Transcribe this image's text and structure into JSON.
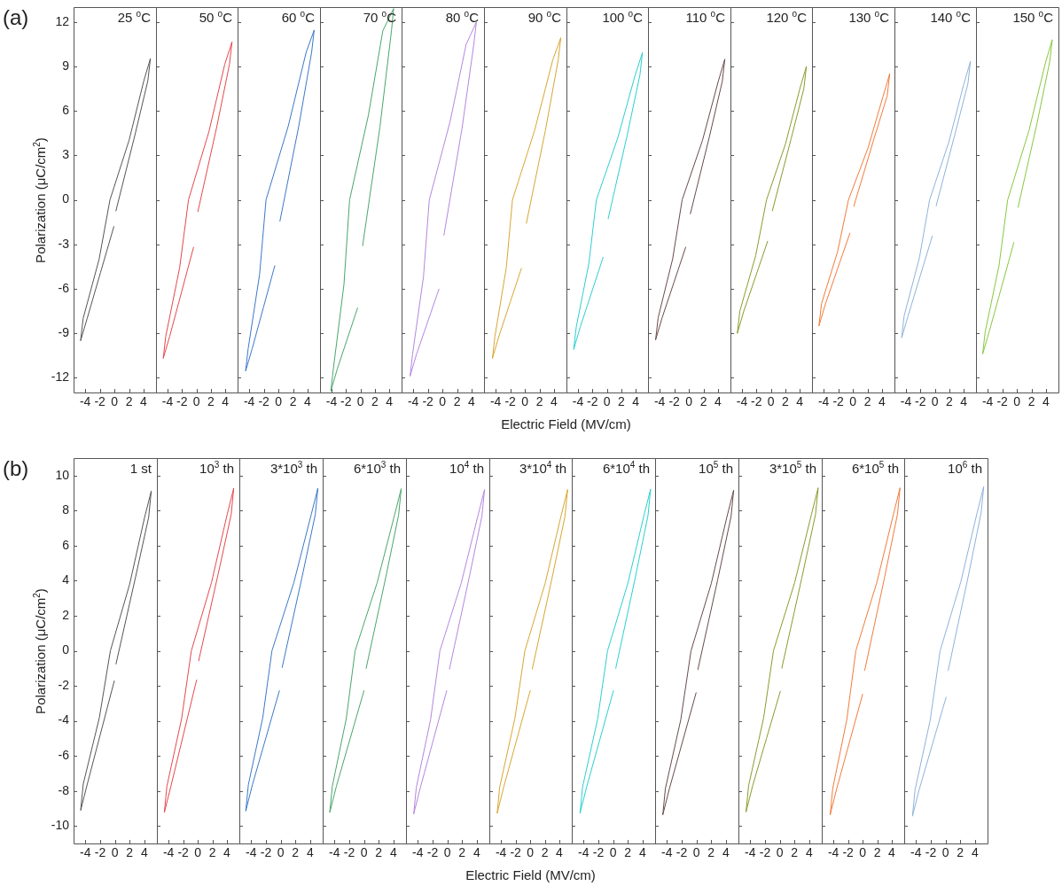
{
  "chart_data": [
    {
      "type": "line",
      "title": "25 $^{o}$C",
      "annotations": [
        "(a)"
      ],
      "ylabel": "Polarization (μC/cm$^{2}$)",
      "color": "#555555",
      "xlim": [
        -5.6,
        5.7
      ],
      "ylim": [
        -13,
        13
      ],
      "xticks": [
        -4,
        -2,
        0,
        2,
        4
      ],
      "yticks": [
        -12,
        -9,
        -6,
        -3,
        0,
        3,
        6,
        9,
        12
      ],
      "x": [
        0.2,
        2.82,
        4.58,
        4.93,
        4.03,
        2.01,
        -0.61,
        -2.1,
        -4.29,
        -4.64,
        -3.74,
        -1.91,
        -0.08
      ],
      "values": [
        -0.75,
        4.39,
        8.03,
        9.53,
        8.03,
        4.02,
        0,
        -4.01,
        -8.01,
        -9.51,
        -8.01,
        -4.91,
        -1.81
      ]
    },
    {
      "type": "line",
      "title": "50 $^{o}$C",
      "tick_labels": "x",
      "color": "#e5484d",
      "xlim": [
        -5.6,
        5.7
      ],
      "ylim": [
        -13,
        13
      ],
      "xticks": [
        -4,
        -2,
        0,
        2,
        4
      ],
      "yticks": [
        -12,
        -9,
        -6,
        -3,
        0,
        3,
        6,
        9,
        12
      ],
      "x": [
        0.2,
        2.82,
        4.58,
        4.93,
        3.93,
        1.72,
        -1.1,
        -2.33,
        -4.25,
        -4.6,
        -3.7,
        -2.05,
        -0.4
      ],
      "values": [
        -0.8,
        4.93,
        9.15,
        10.65,
        9.15,
        4.58,
        0,
        -4.6,
        -9.2,
        -10.7,
        -9.2,
        -6.2,
        -3.2
      ]
    },
    {
      "type": "line",
      "title": "60 $^{o}$C",
      "tick_labels": "x",
      "color": "#3b78c8",
      "xlim": [
        -5.6,
        5.7
      ],
      "ylim": [
        -13,
        13
      ],
      "xticks": [
        -4,
        -2,
        0,
        2,
        4
      ],
      "yticks": [
        -12,
        -9,
        -6,
        -3,
        0,
        3,
        6,
        9,
        12
      ],
      "x": [
        0.2,
        2.8,
        4.55,
        4.9,
        3.8,
        1.35,
        -1.7,
        -2.58,
        -4.15,
        -4.5,
        -3.6,
        -2.05,
        -0.5
      ],
      "values": [
        -1.45,
        5.0,
        9.95,
        11.45,
        9.95,
        4.98,
        0,
        -5.03,
        -10.05,
        -11.55,
        -10.05,
        -7.25,
        -4.45
      ]
    },
    {
      "type": "line",
      "title": "70 $^{o}$C",
      "tick_labels": "x",
      "color": "#4aa66b",
      "xlim": [
        -5.6,
        5.7
      ],
      "ylim": [
        -13,
        13
      ],
      "xticks": [
        -4,
        -2,
        0,
        2,
        4
      ],
      "yticks": [
        -12,
        -9,
        -6,
        -3,
        0,
        3,
        6,
        9,
        12
      ],
      "x": [
        0.3,
        2.7,
        4.3,
        4.6,
        3.1,
        1.1,
        -1.5,
        -2.28,
        -3.75,
        -4.1,
        -3.2,
        -1.8,
        -0.4
      ],
      "values": [
        -3.1,
        4.9,
        11.4,
        12.9,
        11.4,
        5.7,
        0,
        -5.7,
        -11.4,
        -12.9,
        -11.4,
        -9.35,
        -7.3
      ]
    },
    {
      "type": "line",
      "title": "80 $^{o}$C",
      "tick_labels": "x",
      "color": "#b586df",
      "xlim": [
        -5.6,
        5.7
      ],
      "ylim": [
        -13,
        13
      ],
      "xticks": [
        -4,
        -2,
        0,
        2,
        4
      ],
      "yticks": [
        -12,
        -9,
        -6,
        -3,
        0,
        3,
        6,
        9,
        12
      ],
      "x": [
        0.2,
        2.68,
        4.3,
        4.65,
        3.25,
        1.03,
        -1.8,
        -2.6,
        -4.09,
        -4.44,
        -3.54,
        -2.01,
        -0.48
      ],
      "values": [
        -2.39,
        4.8,
        10.48,
        11.98,
        10.48,
        5.24,
        0,
        -5.2,
        -10.4,
        -11.9,
        -10.4,
        -8.22,
        -6.03
      ]
    },
    {
      "type": "line",
      "title": "90 $^{o}$C",
      "tick_labels": "x",
      "xlabel": "Electric Field (MV/cm)",
      "color": "#d8a632",
      "xlim": [
        -5.6,
        5.7
      ],
      "ylim": [
        -13,
        13
      ],
      "xticks": [
        -4,
        -2,
        0,
        2,
        4
      ],
      "yticks": [
        -12,
        -9,
        -6,
        -3,
        0,
        3,
        6,
        9,
        12
      ],
      "x": [
        0.2,
        2.81,
        4.57,
        4.92,
        3.82,
        1.36,
        -1.7,
        -2.55,
        -4.1,
        -4.45,
        -3.55,
        -2.02,
        -0.48
      ],
      "values": [
        -1.59,
        4.67,
        9.43,
        10.93,
        9.43,
        4.72,
        0,
        -4.6,
        -9.2,
        -10.7,
        -9.2,
        -6.92,
        -4.63
      ]
    },
    {
      "type": "line",
      "title": "100 $^{o}$C",
      "tick_labels": "x",
      "color": "#2dcfd0",
      "xlim": [
        -5.6,
        5.7
      ],
      "ylim": [
        -13,
        13
      ],
      "xticks": [
        -4,
        -2,
        0,
        2,
        4
      ],
      "yticks": [
        -12,
        -9,
        -6,
        -3,
        0,
        3,
        6,
        9,
        12
      ],
      "x": [
        0.17,
        2.8,
        4.58,
        4.93,
        3.93,
        1.54,
        -1.45,
        -2.5,
        -4.25,
        -4.6,
        -3.7,
        -2.11,
        -0.52
      ],
      "values": [
        -1.29,
        4.32,
        8.43,
        9.93,
        8.43,
        4.22,
        0,
        -4.3,
        -8.6,
        -10.1,
        -8.6,
        -6.24,
        -3.88
      ]
    },
    {
      "type": "line",
      "title": "110 $^{o}$C",
      "tick_labels": "x",
      "color": "#6a4a4b",
      "xlim": [
        -5.6,
        5.7
      ],
      "ylim": [
        -13,
        13
      ],
      "xticks": [
        -4,
        -2,
        0,
        2,
        4
      ],
      "yticks": [
        -12,
        -9,
        -6,
        -3,
        0,
        3,
        6,
        9,
        12
      ],
      "x": [
        0.2,
        2.82,
        4.58,
        4.93,
        4.03,
        1.86,
        -0.92,
        -2.22,
        -4.21,
        -4.56,
        -3.66,
        -2.05,
        -0.44
      ],
      "values": [
        -0.95,
        4.27,
        7.99,
        9.49,
        7.99,
        4.0,
        0,
        -3.98,
        -7.95,
        -9.45,
        -7.95,
        -5.58,
        -3.2
      ]
    },
    {
      "type": "line",
      "title": "120 $^{o}$C",
      "tick_labels": "x",
      "color": "#8d9a2c",
      "xlim": [
        -5.6,
        5.7
      ],
      "ylim": [
        -13,
        13
      ],
      "xticks": [
        -4,
        -2,
        0,
        2,
        4
      ],
      "yticks": [
        -12,
        -9,
        -6,
        -3,
        0,
        3,
        6,
        9,
        12
      ],
      "x": [
        0.2,
        2.81,
        4.57,
        4.92,
        4.02,
        2.01,
        -0.6,
        -2.1,
        -4.3,
        -4.65,
        -3.75,
        -2.1,
        -0.45
      ],
      "values": [
        -0.75,
        4.13,
        7.5,
        9.0,
        7.5,
        3.75,
        0,
        -3.76,
        -7.51,
        -9.01,
        -7.51,
        -5.16,
        -2.8
      ]
    },
    {
      "type": "line",
      "title": "130 $^{o}$C",
      "tick_labels": "x",
      "color": "#f37b3c",
      "xlim": [
        -5.6,
        5.7
      ],
      "ylim": [
        -13,
        13
      ],
      "xticks": [
        -4,
        -2,
        0,
        2,
        4
      ],
      "yticks": [
        -12,
        -9,
        -6,
        -3,
        0,
        3,
        6,
        9,
        12
      ],
      "x": [
        0.12,
        2.84,
        4.7,
        5.05,
        4.15,
        2.08,
        -0.6,
        -2.1,
        -4.3,
        -4.65,
        -3.75,
        -2.08,
        -0.4
      ],
      "values": [
        -0.45,
        4.03,
        7.0,
        8.5,
        7.0,
        3.5,
        0,
        -3.51,
        -7.01,
        -8.51,
        -7.01,
        -4.63,
        -2.25
      ]
    },
    {
      "type": "line",
      "title": "140 $^{o}$C",
      "tick_labels": "x",
      "color": "#8eb3da",
      "xlim": [
        -5.6,
        5.7
      ],
      "ylim": [
        -13,
        13
      ],
      "xticks": [
        -4,
        -2,
        0,
        2,
        4
      ],
      "yticks": [
        -12,
        -9,
        -6,
        -3,
        0,
        3,
        6,
        9,
        12
      ],
      "x": [
        0.17,
        2.8,
        4.58,
        4.93,
        4.03,
        1.95,
        -0.73,
        -2.14,
        -4.25,
        -4.6,
        -3.7,
        -2.03,
        -0.36
      ],
      "values": [
        -0.42,
        4.46,
        7.84,
        9.34,
        7.84,
        3.92,
        0,
        -3.91,
        -7.81,
        -9.31,
        -7.81,
        -5.13,
        -2.45
      ]
    },
    {
      "type": "line",
      "title": "150 $^{o}$C",
      "tick_labels": "x",
      "color": "#88c840",
      "xlim": [
        -5.6,
        5.7
      ],
      "ylim": [
        -13,
        13
      ],
      "xticks": [
        -4,
        -2,
        0,
        2,
        4
      ],
      "yticks": [
        -12,
        -9,
        -6,
        -3,
        0,
        3,
        6,
        9,
        12
      ],
      "x": [
        0.16,
        2.76,
        4.5,
        4.85,
        3.95,
        1.65,
        -1.26,
        -2.45,
        -4.34,
        -4.69,
        -3.79,
        -2.1,
        -0.41
      ],
      "values": [
        -0.51,
        5.15,
        9.3,
        10.8,
        9.3,
        4.65,
        0,
        -4.45,
        -8.9,
        -10.4,
        -8.9,
        -5.89,
        -2.88
      ]
    },
    {
      "type": "line",
      "title": "1 st",
      "annotations": [
        "(b)"
      ],
      "ylabel": "Polarization (μC/cm$^{2}$)",
      "color": "#555555",
      "xlim": [
        -5.6,
        5.7
      ],
      "ylim": [
        -11,
        11
      ],
      "xticks": [
        -4,
        -2,
        0,
        2,
        4
      ],
      "yticks": [
        -10,
        -8,
        -6,
        -4,
        -2,
        0,
        2,
        4,
        6,
        8,
        10
      ],
      "x": [
        0.15,
        2.79,
        4.58,
        4.93,
        4.03,
        2.01,
        -0.61,
        -2.1,
        -4.29,
        -4.64,
        -3.74,
        -1.91,
        -0.08
      ],
      "values": [
        -0.76,
        4.18,
        7.61,
        9.11,
        7.61,
        3.81,
        0,
        -3.81,
        -7.61,
        -9.11,
        -7.61,
        -4.67,
        -1.72
      ]
    },
    {
      "type": "line",
      "title": "10$^{3}$ th",
      "tick_labels": "x",
      "color": "#e5484d",
      "xlim": [
        -5.6,
        5.7
      ],
      "ylim": [
        -11,
        11
      ],
      "xticks": [
        -4,
        -2,
        0,
        2,
        4
      ],
      "yticks": [
        -10,
        -8,
        -6,
        -4,
        -2,
        0,
        2,
        4,
        6,
        8,
        10
      ],
      "x": [
        0.12,
        2.78,
        4.58,
        4.93,
        4.03,
        1.88,
        -0.88,
        -2.21,
        -4.23,
        -4.58,
        -3.68,
        -1.92,
        -0.16
      ],
      "values": [
        -0.58,
        4.35,
        7.78,
        9.28,
        7.78,
        3.89,
        0,
        -3.87,
        -7.73,
        -9.23,
        -7.73,
        -4.7,
        -1.67
      ]
    },
    {
      "type": "line",
      "title": "3*10$^{3}$ th",
      "tick_labels": "x",
      "color": "#3b78c8",
      "xlim": [
        -5.6,
        5.7
      ],
      "ylim": [
        -11,
        11
      ],
      "xticks": [
        -4,
        -2,
        0,
        2,
        4
      ],
      "yticks": [
        -10,
        -8,
        -6,
        -4,
        -2,
        0,
        2,
        4,
        6,
        8,
        10
      ],
      "x": [
        0.2,
        2.88,
        4.7,
        5.05,
        4.15,
        1.79,
        -1.18,
        -2.43,
        -4.38,
        -4.73,
        -3.83,
        -2.0,
        -0.17
      ],
      "values": [
        -0.96,
        4.16,
        7.78,
        9.28,
        7.78,
        3.89,
        0,
        -3.83,
        -7.65,
        -9.15,
        -7.65,
        -4.97,
        -2.28
      ]
    },
    {
      "type": "line",
      "title": "6*10$^{3}$ th",
      "tick_labels": "x",
      "color": "#4aa66b",
      "xlim": [
        -5.6,
        5.7
      ],
      "ylim": [
        -11,
        11
      ],
      "xticks": [
        -4,
        -2,
        0,
        2,
        4
      ],
      "yticks": [
        -10,
        -8,
        -6,
        -4,
        -2,
        0,
        2,
        4,
        6,
        8,
        10
      ],
      "x": [
        0.29,
        2.92,
        4.7,
        5.05,
        4.15,
        1.78,
        -1.2,
        -2.4,
        -4.29,
        -4.64,
        -3.74,
        -1.87,
        0
      ],
      "values": [
        -1.01,
        4.12,
        7.75,
        9.25,
        7.75,
        3.88,
        0,
        -3.87,
        -7.73,
        -9.23,
        -7.73,
        -5.01,
        -2.28
      ]
    },
    {
      "type": "line",
      "title": "10$^{4}$ th",
      "tick_labels": "x",
      "color": "#b586df",
      "xlim": [
        -5.6,
        5.7
      ],
      "ylim": [
        -11,
        11
      ],
      "xticks": [
        -4,
        -2,
        0,
        2,
        4
      ],
      "yticks": [
        -10,
        -8,
        -6,
        -4,
        -2,
        0,
        2,
        4,
        6,
        8,
        10
      ],
      "x": [
        0.29,
        2.92,
        4.7,
        5.05,
        4.15,
        1.88,
        -1.0,
        -2.26,
        -4.21,
        -4.56,
        -3.66,
        -1.87,
        -0.08
      ],
      "values": [
        -1.05,
        4.08,
        7.7,
        9.2,
        7.7,
        3.85,
        0,
        -3.91,
        -7.82,
        -9.32,
        -7.82,
        -5.05,
        -2.28
      ]
    },
    {
      "type": "line",
      "title": "3*10$^{4}$ th",
      "tick_labels": "x",
      "xlabel": "Electric Field (MV/cm)",
      "color": "#d8a632",
      "xlim": [
        -5.6,
        5.7
      ],
      "ylim": [
        -11,
        11
      ],
      "xticks": [
        -4,
        -2,
        0,
        2,
        4
      ],
      "yticks": [
        -10,
        -8,
        -6,
        -4,
        -2,
        0,
        2,
        4,
        6,
        8,
        10
      ],
      "x": [
        0.28,
        2.96,
        4.78,
        5.13,
        4.23,
        2.05,
        -0.73,
        -2.11,
        -4.18,
        -4.53,
        -3.63,
        -1.82,
        0
      ],
      "values": [
        -1.05,
        4.08,
        7.7,
        9.2,
        7.7,
        3.85,
        0,
        -3.89,
        -7.78,
        -9.28,
        -7.78,
        -5.03,
        -2.28
      ]
    },
    {
      "type": "line",
      "title": "6*10$^{4}$ th",
      "tick_labels": "x",
      "color": "#2dcfd0",
      "xlim": [
        -5.6,
        5.7
      ],
      "ylim": [
        -11,
        11
      ],
      "xticks": [
        -4,
        -2,
        0,
        2,
        4
      ],
      "yticks": [
        -10,
        -8,
        -6,
        -4,
        -2,
        0,
        2,
        4,
        6,
        8,
        10
      ],
      "x": [
        0.36,
        2.98,
        4.74,
        5.09,
        4.19,
        2.02,
        -0.75,
        -2.09,
        -4.13,
        -4.48,
        -3.58,
        -1.77,
        0.05
      ],
      "values": [
        -1.01,
        4.11,
        7.73,
        9.23,
        7.73,
        3.87,
        0,
        -3.89,
        -7.77,
        -9.27,
        -7.77,
        -5.03,
        -2.28
      ]
    },
    {
      "type": "line",
      "title": "10$^{5}$ th",
      "tick_labels": "x",
      "color": "#6a4a4b",
      "xlim": [
        -5.6,
        5.7
      ],
      "ylim": [
        -11,
        11
      ],
      "xticks": [
        -4,
        -2,
        0,
        2,
        4
      ],
      "yticks": [
        -10,
        -8,
        -6,
        -4,
        -2,
        0,
        2,
        4,
        6,
        8,
        10
      ],
      "x": [
        0.2,
        2.88,
        4.7,
        5.05,
        4.15,
        2.01,
        -0.73,
        -2.12,
        -4.21,
        -4.56,
        -3.66,
        -1.85,
        -0.04
      ],
      "values": [
        -1.08,
        4.04,
        7.66,
        9.16,
        7.66,
        3.83,
        0,
        -3.94,
        -7.87,
        -9.37,
        -7.87,
        -5.14,
        -2.4
      ]
    },
    {
      "type": "line",
      "title": "3*10$^{5}$ th",
      "tick_labels": "x",
      "color": "#8d9a2c",
      "xlim": [
        -5.6,
        5.7
      ],
      "ylim": [
        -11,
        11
      ],
      "xticks": [
        -4,
        -2,
        0,
        2,
        4
      ],
      "yticks": [
        -10,
        -8,
        -6,
        -4,
        -2,
        0,
        2,
        4,
        6,
        8,
        10
      ],
      "x": [
        0.28,
        2.99,
        4.86,
        5.21,
        4.31,
        2.03,
        -0.85,
        -2.19,
        -4.22,
        -4.57,
        -3.67,
        -1.8,
        0.08
      ],
      "values": [
        -1.0,
        4.15,
        7.8,
        9.3,
        7.8,
        3.9,
        0,
        -3.85,
        -7.7,
        -9.2,
        -7.7,
        -5.01,
        -2.31
      ]
    },
    {
      "type": "line",
      "title": "6*10$^{5}$ th",
      "tick_labels": "x",
      "color": "#f37b3c",
      "xlim": [
        -5.6,
        5.7
      ],
      "ylim": [
        -11,
        11
      ],
      "xticks": [
        -4,
        -2,
        0,
        2,
        4
      ],
      "yticks": [
        -10,
        -8,
        -6,
        -4,
        -2,
        0,
        2,
        4,
        6,
        8,
        10
      ],
      "x": [
        0.28,
        2.96,
        4.78,
        5.13,
        4.23,
        1.95,
        -0.93,
        -2.17,
        -4.1,
        -4.45,
        -3.55,
        -1.78,
        0
      ],
      "values": [
        -1.13,
        4.09,
        7.8,
        9.3,
        7.8,
        3.9,
        0,
        -3.94,
        -7.87,
        -9.37,
        -7.87,
        -5.18,
        -2.48
      ]
    },
    {
      "type": "line",
      "title": "10$^{6}$ th",
      "tick_labels": "x",
      "color": "#8eb3da",
      "xlim": [
        -5.6,
        5.7
      ],
      "ylim": [
        -11,
        11
      ],
      "xticks": [
        -4,
        -2,
        0,
        2,
        4
      ],
      "yticks": [
        -10,
        -8,
        -6,
        -4,
        -2,
        0,
        2,
        4,
        6,
        8,
        10
      ],
      "x": [
        0.36,
        3.02,
        4.83,
        5.18,
        4.28,
        2.08,
        -0.73,
        -2.08,
        -4.13,
        -4.48,
        -3.58,
        -1.75,
        0.08
      ],
      "values": [
        -1.13,
        4.12,
        7.87,
        9.37,
        7.87,
        3.94,
        0,
        -3.97,
        -7.94,
        -9.44,
        -7.94,
        -5.3,
        -2.65
      ]
    }
  ]
}
